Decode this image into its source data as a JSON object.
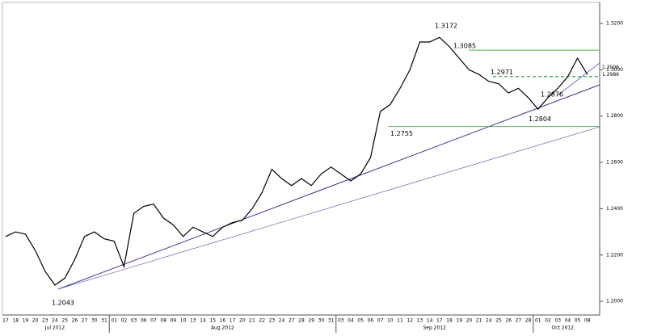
{
  "chart_data": {
    "type": "line",
    "categories": [
      "17",
      "18",
      "19",
      "20",
      "23",
      "24",
      "25",
      "26",
      "27",
      "30",
      "31",
      "01",
      "02",
      "03",
      "06",
      "07",
      "08",
      "09",
      "10",
      "13",
      "14",
      "15",
      "16",
      "17",
      "20",
      "21",
      "22",
      "23",
      "24",
      "27",
      "28",
      "29",
      "30",
      "31",
      "03",
      "04",
      "05",
      "06",
      "07",
      "10",
      "11",
      "12",
      "13",
      "14",
      "17",
      "18",
      "19",
      "20",
      "21",
      "24",
      "25",
      "26",
      "27",
      "28",
      "01",
      "02",
      "03",
      "04",
      "05",
      "08"
    ],
    "months": [
      "Jul 2012",
      "Aug 2012",
      "Sep 2012",
      "Oct 2012"
    ],
    "series": [
      {
        "color": "#000000",
        "values": [
          1.228,
          1.23,
          1.229,
          1.222,
          1.213,
          1.207,
          1.21,
          1.218,
          1.228,
          1.23,
          1.227,
          1.226,
          1.215,
          1.238,
          1.241,
          1.242,
          1.236,
          1.233,
          1.228,
          1.232,
          1.23,
          1.228,
          1.232,
          1.234,
          1.235,
          1.24,
          1.247,
          1.257,
          1.253,
          1.25,
          1.253,
          1.25,
          1.255,
          1.258,
          1.255,
          1.252,
          1.255,
          1.262,
          1.282,
          1.285,
          1.292,
          1.3,
          1.312,
          1.312,
          1.314,
          1.31,
          1.305,
          1.3,
          1.298,
          1.295,
          1.294,
          1.29,
          1.292,
          1.288,
          1.283,
          1.288,
          1.292,
          1.297,
          1.305,
          1.298
        ]
      }
    ],
    "ylim": [
      1.1941,
      1.3284
    ],
    "yticks": [
      {
        "value": 1.2,
        "label": "1.2000"
      },
      {
        "value": 1.22,
        "label": "1.2200"
      },
      {
        "value": 1.24,
        "label": "1.2400"
      },
      {
        "value": 1.26,
        "label": "1.2600"
      },
      {
        "value": 1.28,
        "label": "1.2800"
      },
      {
        "value": 1.3,
        "label": "1.3000"
      },
      {
        "value": 1.32,
        "label": "1.3200"
      }
    ],
    "price_labels": [
      {
        "value": 1.3006,
        "label": "1.3006"
      },
      {
        "value": 1.2986,
        "label": "1.2986"
      }
    ],
    "annotations": [
      {
        "value": 1.3172,
        "label": "1.3172"
      },
      {
        "value": 1.3085,
        "label": "1.3085"
      },
      {
        "value": 1.2971,
        "label": "1.2971"
      },
      {
        "value": 1.2876,
        "label": "1.2876"
      },
      {
        "value": 1.2804,
        "label": "1.2804"
      },
      {
        "value": 1.2755,
        "label": "1.2755"
      },
      {
        "value": 1.2043,
        "label": "1.2043"
      }
    ]
  }
}
